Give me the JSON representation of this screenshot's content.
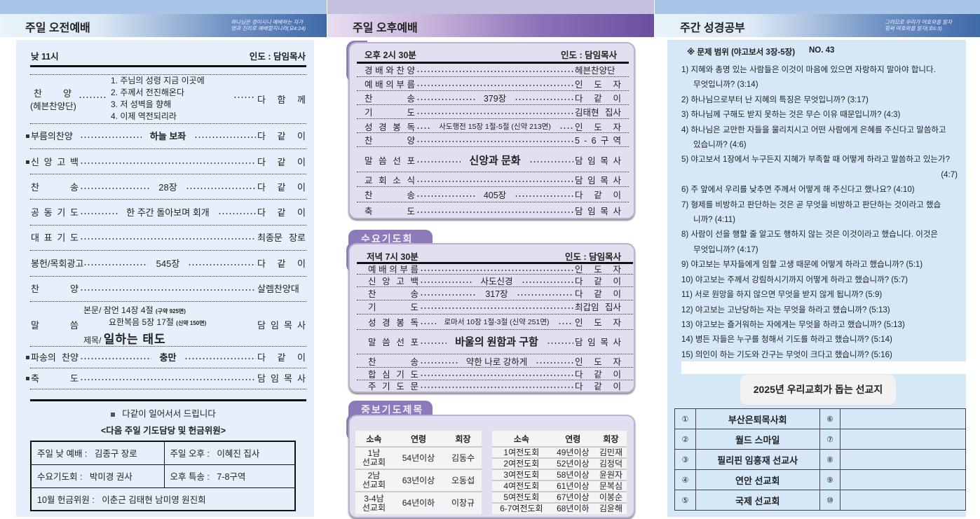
{
  "panels": {
    "left": {
      "title": "주일 오전예배",
      "verse1": "하나님은 영이시니 예배하는 자가",
      "verse2": "영과 진리로 예배할지니라(요4:24)"
    },
    "middle": {
      "title": "주일 오후예배"
    },
    "right": {
      "title": "주간 성경공부",
      "verse1": "그러므로 우리가 여호와를 알자",
      "verse2": "힘써 여호와를 알자(호6:3)"
    }
  },
  "morning": {
    "time": "낮 11시",
    "leader": "인도 : 담임목사",
    "praise": {
      "label": "찬 양",
      "sub": "(헤븐찬양단)",
      "songs": [
        "1. 주님의 성령 지금 이곳에",
        "2. 주께서 전진해온다",
        "3. 저 성벽을 향해",
        "4. 이제 역전되리라"
      ],
      "right": "다 함 께"
    },
    "rows": [
      {
        "label": "부름의찬양",
        "center": "하늘 보좌",
        "right": "다 같 이",
        "bullet": true,
        "bold": true
      },
      {
        "label": "신 앙 고 백",
        "center": "",
        "right": "다 같 이",
        "bullet": true
      },
      {
        "label": "찬 송",
        "center": "28장",
        "right": "다 같 이"
      },
      {
        "label": "공 동 기 도",
        "center": "한 주간 돌아보며 회개",
        "right": "다 같 이"
      },
      {
        "label": "대 표 기 도",
        "center": "",
        "right": "최종문 장로"
      },
      {
        "label": "봉헌/목회광고",
        "center": "545장",
        "right": "다 같 이"
      },
      {
        "label": "찬 양",
        "center": "",
        "right": "살렘찬양대"
      }
    ],
    "sermon": {
      "label": "말 씀",
      "text_label": "본문/",
      "text1": "잠언 14장 4절",
      "text1_note": "(구약 925면)",
      "text2": "요한복음 5장 17절",
      "text2_note": "(신약 150면)",
      "title_label": "제목/",
      "title": "일하는 태도",
      "right": "담 임 목 사"
    },
    "rows2": [
      {
        "label": "파송의 찬양",
        "center": "충만",
        "right": "다 같 이",
        "bullet": true,
        "bold": true
      },
      {
        "label": "축 도",
        "center": "",
        "right": "담 임 목 사",
        "bullet": true
      }
    ],
    "stand_note": "다같이 일어서서 드립니다",
    "next_title": "<다음 주일 기도담당 및 헌금위원>",
    "next": {
      "sunday_am_label": "주일 낮 예배 :",
      "sunday_am": "김종구 장로",
      "sunday_pm_label": "주일 오후 :",
      "sunday_pm": "이혜진 집사",
      "wed_label": "수요기도회 :",
      "wed": "박미경 권사",
      "special_label": "오후 특송 :",
      "special": "7-8구역",
      "offering_label": "10월 헌금위원 :",
      "offering": "이춘근 김태현 남미영 원진희"
    }
  },
  "afternoon": {
    "time": "오후 2시 30분",
    "leader": "인도 : 담임목사",
    "rows": [
      {
        "label": "경 배 와 찬 양",
        "center": "",
        "right": "헤븐찬양단"
      },
      {
        "label": "예 배 의 부 름",
        "center": "",
        "right": "인 도 자"
      },
      {
        "label": "찬 송",
        "center": "379장",
        "right": "다 같 이"
      },
      {
        "label": "기 도",
        "center": "",
        "right": "김태현 집사"
      },
      {
        "label": "성 경 봉 독",
        "center": "사도행전 15장 1절-5절 (신약 213면)",
        "right": "인 도 자",
        "small": true
      },
      {
        "label": "찬 양",
        "center": "",
        "right": "5 - 6 구 역"
      },
      {
        "label": "말 씀 선 포",
        "center": "신앙과 문화",
        "right": "담 임 목 사",
        "big": true
      },
      {
        "label": "교 회 소 식",
        "center": "",
        "right": "담 임 목 사"
      },
      {
        "label": "찬 송",
        "center": "405장",
        "right": "다 같 이"
      },
      {
        "label": "축 도",
        "center": "",
        "right": "담 임 목 사"
      }
    ]
  },
  "wednesday": {
    "tab": "수요기도회",
    "time": "저녁 7시 30분",
    "leader": "인도 : 담임목사",
    "rows": [
      {
        "label": "예 배 의 부 름",
        "center": "",
        "right": "인 도 자"
      },
      {
        "label": "신 앙 고 백",
        "center": "사도신경",
        "right": "다 같 이"
      },
      {
        "label": "찬 송",
        "center": "317장",
        "right": "다 같 이"
      },
      {
        "label": "기 도",
        "center": "",
        "right": "최갑임 집사"
      },
      {
        "label": "성 경 봉 독",
        "center": "로마서 10장 1절-3절 (신약 251면)",
        "right": "인 도 자",
        "small": true
      },
      {
        "label": "말 씀 선 포",
        "center": "바울의 원함과 구함",
        "right": "담 임 목 사",
        "big": true
      },
      {
        "label": "찬 송",
        "center": "약한 나로 강하게",
        "right": "인 도 자"
      },
      {
        "label": "합 심 기 도",
        "center": "",
        "right": "다 같 이"
      },
      {
        "label": "주 기 도 문",
        "center": "",
        "right": "다 같 이"
      }
    ]
  },
  "intercession": {
    "tab": "중보기도제목",
    "headers": [
      "소속",
      "연령",
      "회장"
    ],
    "men": [
      [
        "1남\n선교회",
        "54년이상",
        "김동수"
      ],
      [
        "2남\n선교회",
        "63년이상",
        "오동섭"
      ],
      [
        "3-4남\n선교회",
        "64년이하",
        "이창규"
      ]
    ],
    "women": [
      [
        "1여전도회",
        "49년이상",
        "김민재"
      ],
      [
        "2여전도회",
        "52년이상",
        "김정덕"
      ],
      [
        "3여전도회",
        "58년이상",
        "윤원자"
      ],
      [
        "4여전도회",
        "61년이상",
        "문복심"
      ],
      [
        "5여전도회",
        "67년이상",
        "이봉순"
      ],
      [
        "6-7여전도회",
        "68년이하",
        "김윤해"
      ]
    ]
  },
  "study": {
    "range": "※ 문제 범위 (야고보서 3장-5장)",
    "no": "NO. 43",
    "questions": [
      {
        "n": "1)",
        "t": "지혜와 총명 있는 사람들은 이것이 마음에 있으면 자랑하지 말아야 합니다.",
        "c": "무엇입니까? (3:14)"
      },
      {
        "n": "2)",
        "t": "하나님으로부터 난 지혜의 특징은 무엇입니까? (3:17)"
      },
      {
        "n": "3)",
        "t": "하나님께 구해도 받지 못하는 것은 무슨 이유 때문입니까? (4:3)"
      },
      {
        "n": "4)",
        "t": "하나님은 교만한 자들을 물리치시고 어떤 사람에게 은혜를 주신다고 말씀하고",
        "c": "있습니까? (4:6)"
      },
      {
        "n": "5)",
        "t": "야고보서 1장에서 누구든지 지혜가 부족할 때 어떻게 하라고 말씀하고 있는가?",
        "r": "(4:7)"
      },
      {
        "n": "6)",
        "t": "주 앞에서 우리를 낮추면 주께서 어떻게 해 주신다고 했나요? (4:10)"
      },
      {
        "n": "7)",
        "t": "형제를 비방하고 판단하는 것은 곧 무엇을 비방하고 판단하는 것이라고 했습",
        "c": "니까? (4:11)"
      },
      {
        "n": "8)",
        "t": "사람이 선을 행할 줄 알고도 행하지 않는 것은 이것이라고 했습니다. 이것은",
        "c": "무엇입니까? (4:17)"
      },
      {
        "n": "9)",
        "t": "야고보는 부자들에게 임할 고생 때문에 어떻게 하라고 했습니까? (5:1)"
      },
      {
        "n": "10)",
        "t": "야고보는 주께서 강림하시기까지 어떻게 하라고 했습니까? (5:7)"
      },
      {
        "n": "11)",
        "t": "서로 원망을 하지 않으면 무엇을 받지 않게 됩니까? (5:9)"
      },
      {
        "n": "12)",
        "t": "야고보는 고난당하는 자는 무엇을 하라고 했습니까? (5:13)"
      },
      {
        "n": "13)",
        "t": "야고보는 즐거워하는 자에게는 무엇을 하라고 했습니까? (5:13)"
      },
      {
        "n": "14)",
        "t": "병든 자들은 누구를 청해서 기도를 하라고 했습니까? (5:14)"
      },
      {
        "n": "15)",
        "t": "의인이 하는 기도와 간구는 무엇이 크다고 했습니까? (5:16)"
      }
    ]
  },
  "missions": {
    "title": "2025년 우리교회가 돕는 선교지",
    "items": [
      [
        "①",
        "부산은퇴목사회",
        "⑥",
        ""
      ],
      [
        "②",
        "월드 스마일",
        "⑦",
        ""
      ],
      [
        "③",
        "필리핀 임흥재 선교사",
        "⑧",
        ""
      ],
      [
        "④",
        "연안 선교회",
        "⑨",
        ""
      ],
      [
        "⑤",
        "국제 선교회",
        "⑩",
        ""
      ]
    ]
  },
  "colors": {
    "left_band": "#a9c6e8",
    "mid_band": "#c4c0e0",
    "accent_purple": "#8c7bb8",
    "left_bg": "#e6f0fa",
    "right_bg": "#d6e8f7",
    "lavender": "#e3dff0"
  }
}
